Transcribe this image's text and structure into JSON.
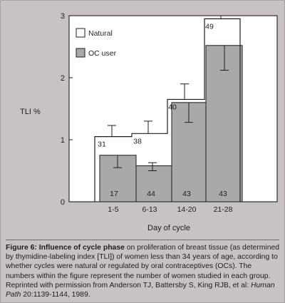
{
  "chart_data": {
    "type": "bar",
    "xlabel": "Day of cycle",
    "ylabel": "TLI %",
    "ylim": [
      0,
      3
    ],
    "yticks": [
      0,
      1,
      2,
      3
    ],
    "categories": [
      "1-5",
      "6-13",
      "14-20",
      "21-28"
    ],
    "series": [
      {
        "name": "Natural",
        "style": "outline",
        "values": [
          1.05,
          1.1,
          1.65,
          2.95
        ],
        "error_upper": [
          1.23,
          1.3,
          1.9,
          3.0
        ],
        "n": [
          "31",
          "38",
          "40",
          "49"
        ]
      },
      {
        "name": "OC user",
        "style": "filled",
        "values": [
          0.75,
          0.58,
          1.6,
          2.52
        ],
        "error_upper": [
          0.75,
          0.63,
          1.6,
          2.52
        ],
        "error_lower": [
          0.55,
          0.5,
          1.28,
          2.12
        ],
        "n": [
          "17",
          "44",
          "43",
          "43"
        ]
      }
    ],
    "legend": {
      "placement": "top-left",
      "items": [
        "Natural",
        "OC user"
      ]
    },
    "colors": {
      "natural_fill": "#ffffff",
      "oc_fill": "#a9a9a9",
      "plot_bg": "#ffffff",
      "ink": "#1e1e1e"
    }
  },
  "caption": {
    "heading": "Figure 6: Influence of cycle phase",
    "text_1": " on proliferation of breast tissue (as determined by thymidine-labeling index [TLI]) of women less than 34 years of age, according to whether cycles were natural or regulated by oral contraceptives (OCs). The numbers within the figure represent the number of women studied in each group. Reprinted with permission from Anderson TJ, Battersby S, King RJB, et al: ",
    "journal": "Human Path",
    "text_2": " 20:1139-1144, 1989."
  }
}
